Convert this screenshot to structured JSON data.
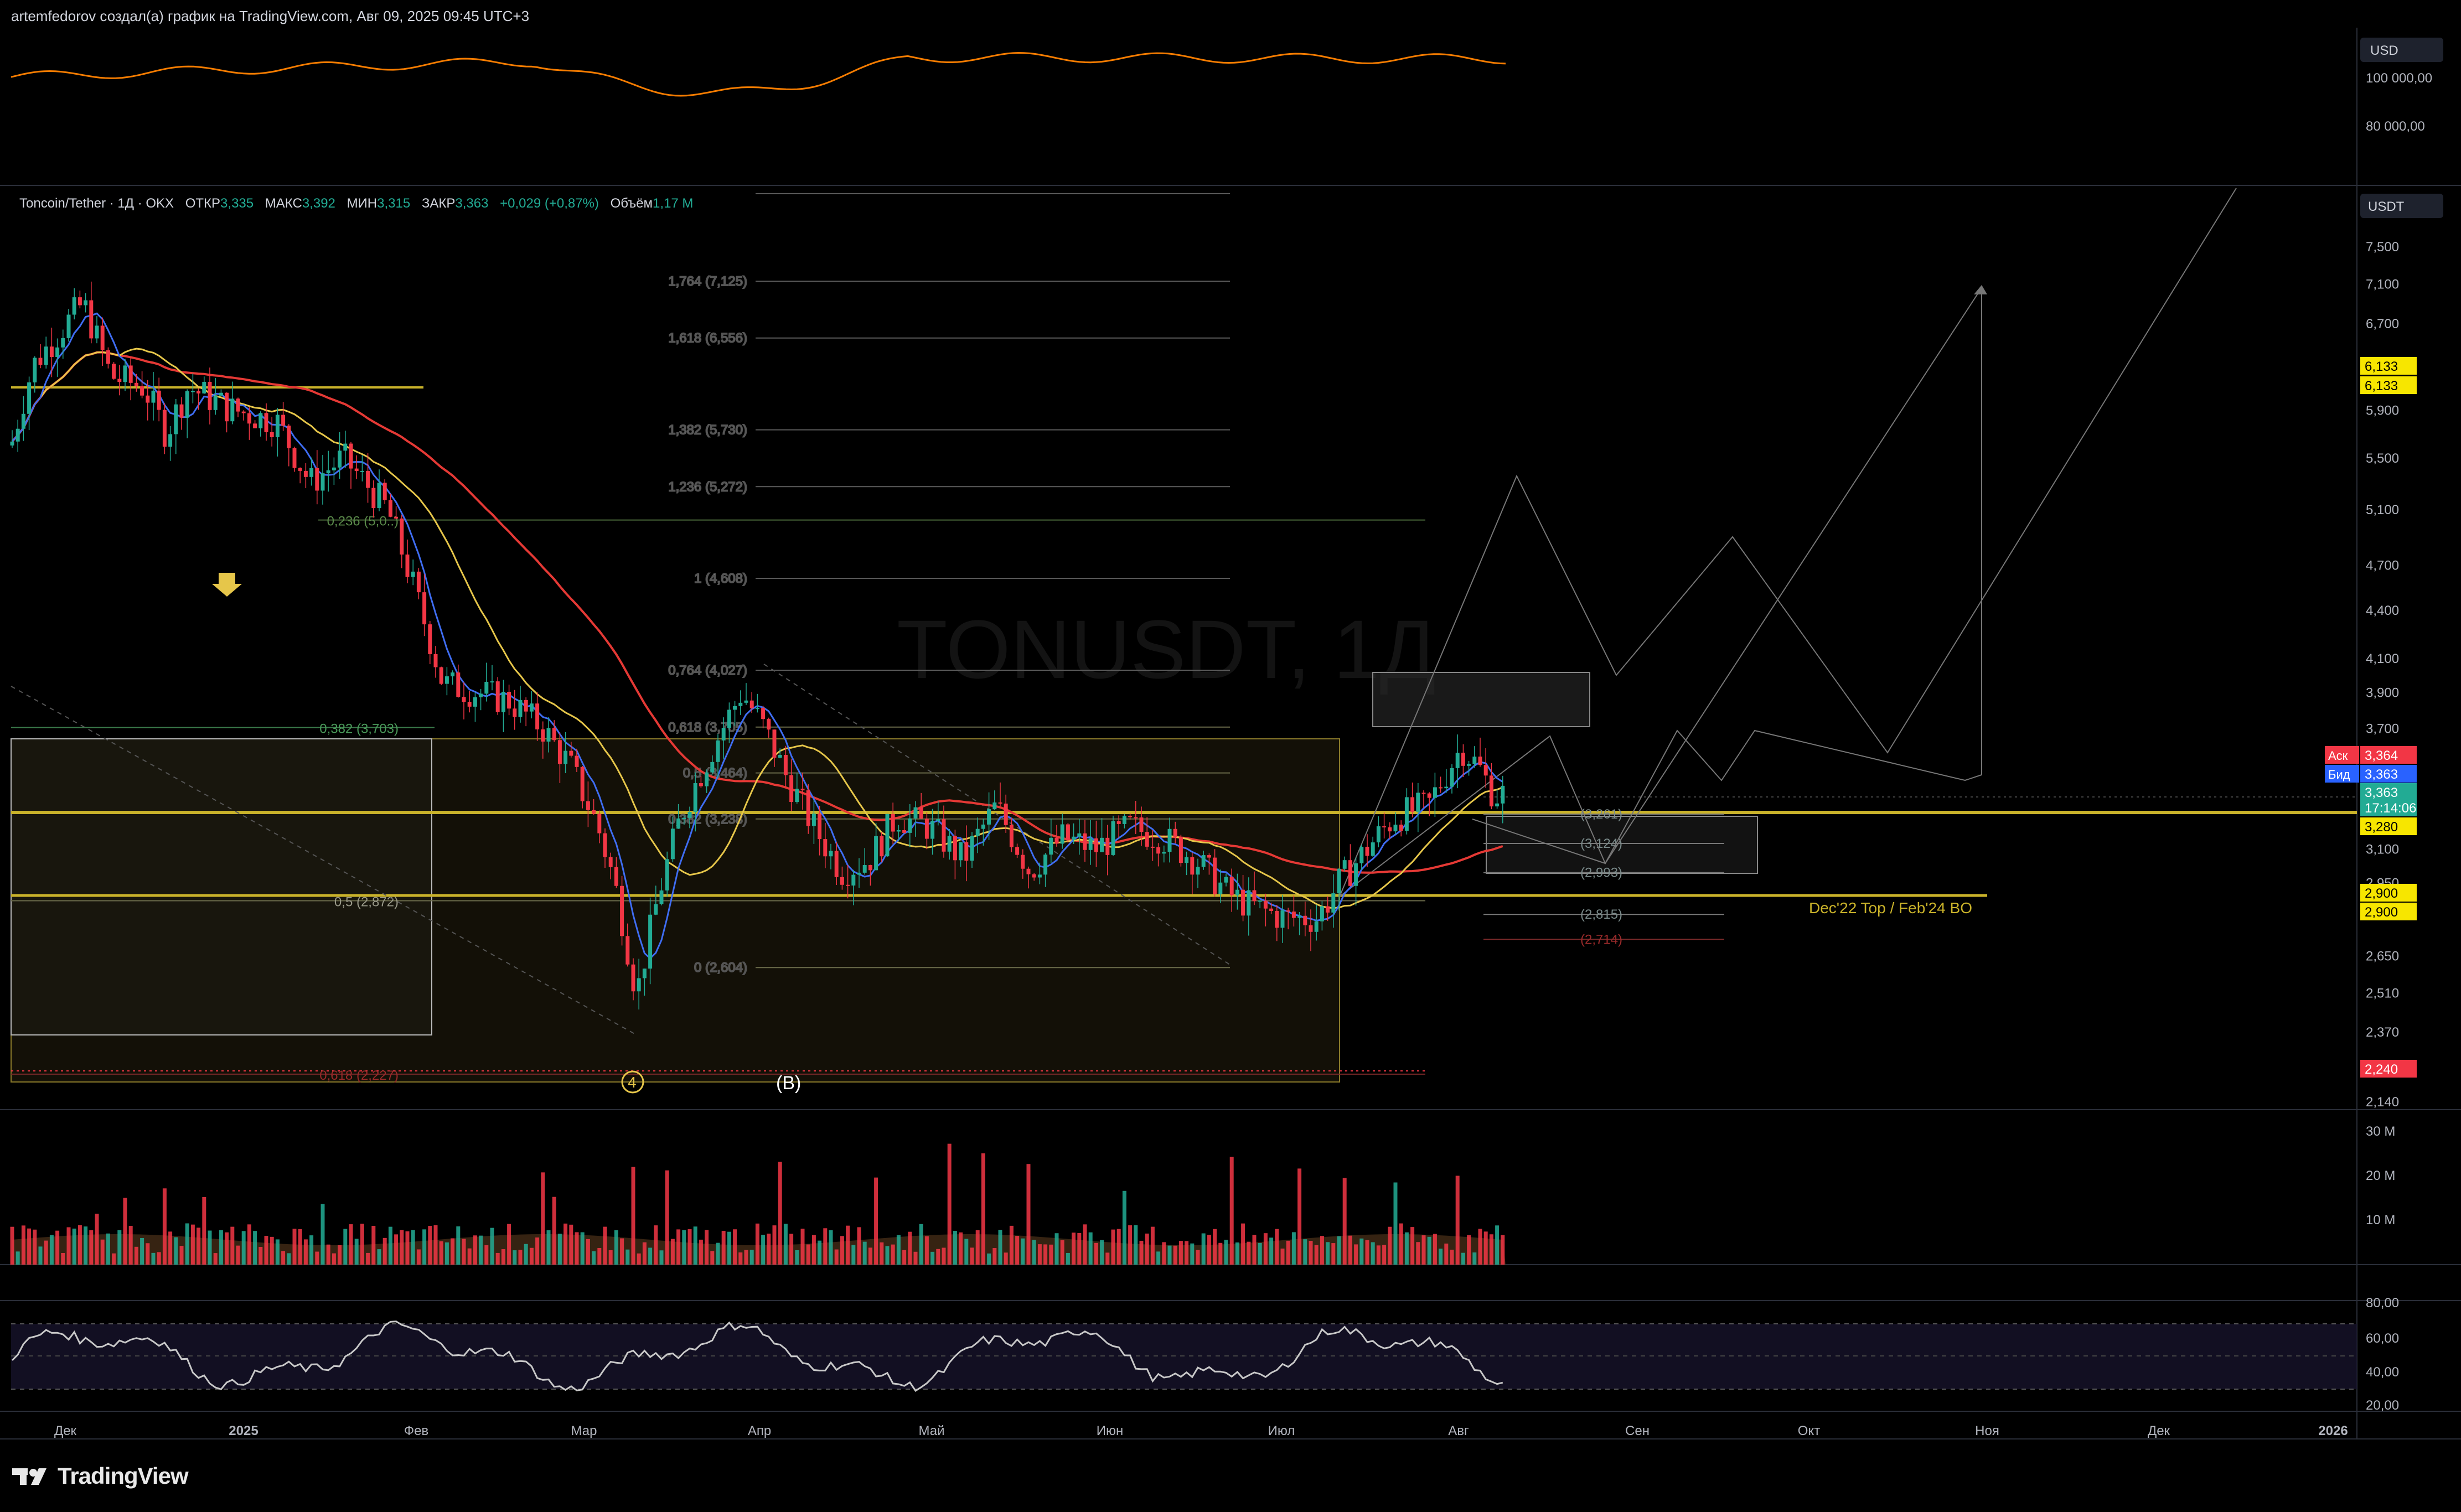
{
  "header": {
    "credit": "artemfedorov создал(а) график на TradingView.com, Авг 09, 2025 09:45 UTC+3"
  },
  "btc_pane": {
    "currency": "USD",
    "ticks": [
      {
        "label": "100 000,00",
        "value": 100000
      },
      {
        "label": "80 000,00",
        "value": 80000
      }
    ],
    "line_color": "#f57c00"
  },
  "legend": {
    "symbol": "Toncoin/Tether · 1Д · OKX",
    "open_label": "ОТКР",
    "open_value": "3,335",
    "high_label": "МАКС",
    "high_value": "3,392",
    "low_label": "МИН",
    "low_value": "3,315",
    "close_label": "ЗАКР",
    "close_value": "3,363",
    "change": "+0,029 (+0,87%)",
    "volume_label": "Объём",
    "volume_value": "1,17 M"
  },
  "watermark": "TONUSDT, 1Д",
  "main_pane": {
    "currency": "USDT",
    "ticks": [
      "7,500",
      "7,100",
      "6,700",
      "5,900",
      "5,500",
      "5,100",
      "4,700",
      "4,400",
      "4,100",
      "3,900",
      "3,700",
      "3,100",
      "2,950",
      "2,650",
      "2,510",
      "2,370",
      "2,140"
    ],
    "badges": [
      {
        "label": "6,133",
        "bg": "#f7e600",
        "fg": "#000000"
      },
      {
        "label": "6,133",
        "bg": "#f7e600",
        "fg": "#000000"
      },
      {
        "label": "3,364",
        "bg": "#f23645",
        "fg": "#ffffff",
        "tag": "Аск"
      },
      {
        "label": "3,363",
        "bg": "#2962ff",
        "fg": "#ffffff",
        "tag": "Бид"
      },
      {
        "label": "3,363",
        "bg": "#22ab94",
        "fg": "#ffffff"
      },
      {
        "label": "17:14:06",
        "bg": "#22ab94",
        "fg": "#ffffff"
      },
      {
        "label": "3,280",
        "bg": "#f7e600",
        "fg": "#000000"
      },
      {
        "label": "2,900",
        "bg": "#f7e600",
        "fg": "#000000"
      },
      {
        "label": "2,900",
        "bg": "#f7e600",
        "fg": "#000000"
      },
      {
        "label": "2,240",
        "bg": "#f23645",
        "fg": "#ffffff"
      }
    ]
  },
  "fib_extension": [
    {
      "label": "1,764 (7,125)",
      "value": 7.125
    },
    {
      "label": "1,618 (6,556)",
      "value": 6.556
    },
    {
      "label": "1,382 (5,730)",
      "value": 5.73
    },
    {
      "label": "1,236 (5,272)",
      "value": 5.272
    },
    {
      "label": "1 (4,608)",
      "value": 4.608
    },
    {
      "label": "0,764 (4,027)",
      "value": 4.027
    },
    {
      "label": "0,618 (3,705)",
      "value": 3.705
    },
    {
      "label": "0,5 (3,464)",
      "value": 3.464
    },
    {
      "label": "0,382 (3,238)",
      "value": 3.238
    },
    {
      "label": "0 (2,604)",
      "value": 2.604
    }
  ],
  "fib_retracement": [
    {
      "label": "0,236 (5,0..)",
      "value": 5.02
    },
    {
      "label": "0,382 (3,703)",
      "value": 3.703
    },
    {
      "label": "0,5 (2,872)",
      "value": 2.872
    },
    {
      "label": "0,618 (2,227)",
      "value": 2.227
    }
  ],
  "target_levels": [
    {
      "label": "(3,261)",
      "value": 3.261
    },
    {
      "label": "(3,124)",
      "value": 3.124
    },
    {
      "label": "(2,993)",
      "value": 2.993
    },
    {
      "label": "(2,815)",
      "value": 2.815
    },
    {
      "label": "(2,714)",
      "value": 2.714
    }
  ],
  "annotations": {
    "level_note": "Dec'22 Top / Feb'24 BO",
    "wave_4": "4",
    "wave_b": "(B)"
  },
  "volume_pane": {
    "ticks": [
      "30 M",
      "20 M",
      "10 M"
    ]
  },
  "rsi_pane": {
    "ticks": [
      "80,00",
      "60,00",
      "40,00",
      "20,00"
    ]
  },
  "time_axis": [
    "Дек",
    "2025",
    "Фев",
    "Мар",
    "Апр",
    "Май",
    "Июн",
    "Июл",
    "Авг",
    "Сен",
    "Окт",
    "Ноя",
    "Дек",
    "2026"
  ],
  "brand": "TradingView",
  "chart_data": {
    "type": "candlestick",
    "title": "TONUSDT, 1Д",
    "symbol": "Toncoin/Tether · 1Д · OKX",
    "ylim": [
      2.1,
      8.0
    ],
    "y_scale": "log",
    "x_ticks": [
      "Дек",
      "2025",
      "Фев",
      "Мар",
      "Апр",
      "Май",
      "Июн",
      "Июл",
      "Авг",
      "Сен",
      "Окт",
      "Ноя",
      "Дек",
      "2026"
    ],
    "price_path_monthly": [
      {
        "month": "Дек",
        "value": 6.3
      },
      {
        "month": "2025",
        "value": 5.7
      },
      {
        "month": "Фев",
        "value": 3.9
      },
      {
        "month": "Мар",
        "value": 2.6
      },
      {
        "month": "Апр",
        "value": 3.6
      },
      {
        "month": "Май",
        "value": 3.15
      },
      {
        "month": "Июн",
        "value": 3.0
      },
      {
        "month": "Июл",
        "value": 2.95
      },
      {
        "month": "Авг",
        "value": 3.363
      }
    ],
    "horizontal_levels": [
      3.28,
      2.9,
      2.24,
      6.133
    ],
    "grid": false,
    "legend": "top-left"
  }
}
